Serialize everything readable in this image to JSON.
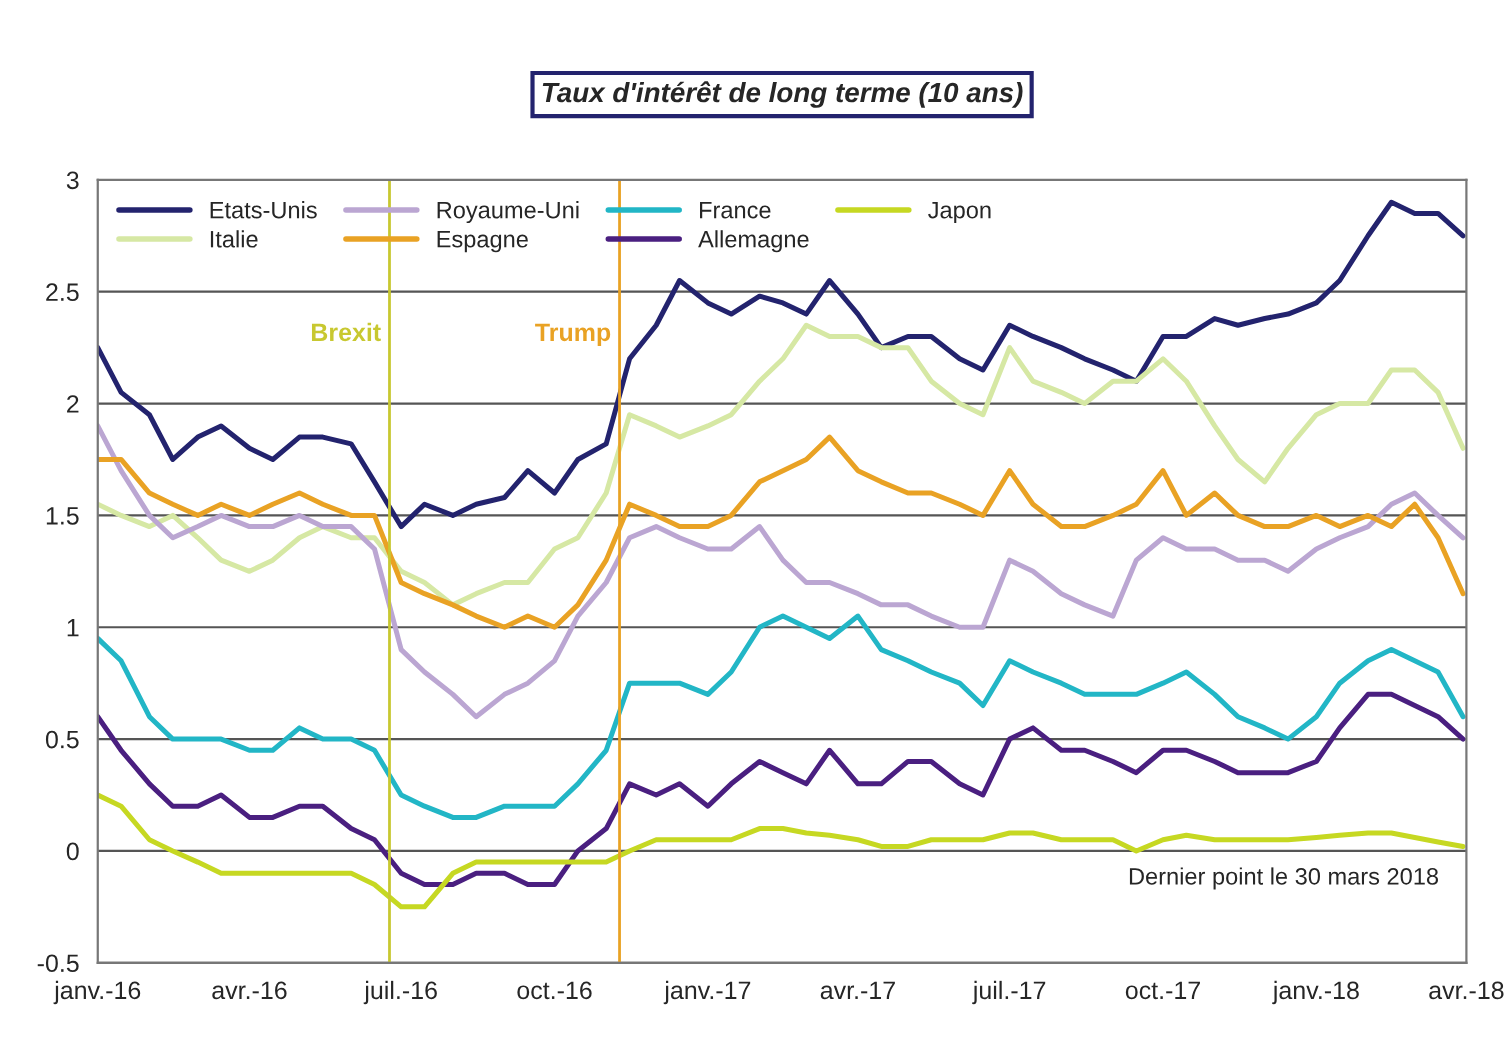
{
  "chart_data": {
    "type": "line",
    "title": "Taux d'intérêt de long terme (10 ans)",
    "x": [
      "2016-01-01",
      "2016-01-15",
      "2016-02-01",
      "2016-02-15",
      "2016-03-01",
      "2016-03-15",
      "2016-04-01",
      "2016-04-15",
      "2016-05-01",
      "2016-05-15",
      "2016-06-01",
      "2016-06-15",
      "2016-07-01",
      "2016-07-15",
      "2016-08-01",
      "2016-08-15",
      "2016-09-01",
      "2016-09-15",
      "2016-10-01",
      "2016-10-15",
      "2016-11-01",
      "2016-11-15",
      "2016-12-01",
      "2016-12-15",
      "2017-01-01",
      "2017-01-15",
      "2017-02-01",
      "2017-02-15",
      "2017-03-01",
      "2017-03-15",
      "2017-04-01",
      "2017-04-15",
      "2017-05-01",
      "2017-05-15",
      "2017-06-01",
      "2017-06-15",
      "2017-07-01",
      "2017-07-15",
      "2017-08-01",
      "2017-08-15",
      "2017-09-01",
      "2017-09-15",
      "2017-10-01",
      "2017-10-15",
      "2017-11-01",
      "2017-11-15",
      "2017-12-01",
      "2017-12-15",
      "2018-01-01",
      "2018-01-15",
      "2018-02-01",
      "2018-02-15",
      "2018-03-01",
      "2018-03-15",
      "2018-03-30"
    ],
    "series": [
      {
        "name": "Etats-Unis",
        "color": "#23236e",
        "values": [
          2.25,
          2.05,
          1.95,
          1.75,
          1.85,
          1.9,
          1.8,
          1.75,
          1.85,
          1.85,
          1.82,
          1.65,
          1.45,
          1.55,
          1.5,
          1.55,
          1.58,
          1.7,
          1.6,
          1.75,
          1.82,
          2.2,
          2.35,
          2.55,
          2.45,
          2.4,
          2.48,
          2.45,
          2.4,
          2.55,
          2.4,
          2.25,
          2.3,
          2.3,
          2.2,
          2.15,
          2.35,
          2.3,
          2.25,
          2.2,
          2.15,
          2.1,
          2.3,
          2.3,
          2.38,
          2.35,
          2.38,
          2.4,
          2.45,
          2.55,
          2.75,
          2.9,
          2.85,
          2.85,
          2.75
        ]
      },
      {
        "name": "Italie",
        "color": "#d6e8a4",
        "values": [
          1.55,
          1.5,
          1.45,
          1.5,
          1.4,
          1.3,
          1.25,
          1.3,
          1.4,
          1.45,
          1.4,
          1.4,
          1.25,
          1.2,
          1.1,
          1.15,
          1.2,
          1.2,
          1.35,
          1.4,
          1.6,
          1.95,
          1.9,
          1.85,
          1.9,
          1.95,
          2.1,
          2.2,
          2.35,
          2.3,
          2.3,
          2.25,
          2.25,
          2.1,
          2.0,
          1.95,
          2.25,
          2.1,
          2.05,
          2.0,
          2.1,
          2.1,
          2.2,
          2.1,
          1.9,
          1.75,
          1.65,
          1.8,
          1.95,
          2.0,
          2.0,
          2.15,
          2.15,
          2.05,
          1.8
        ]
      },
      {
        "name": "Royaume-Uni",
        "color": "#bba6d2",
        "values": [
          1.9,
          1.7,
          1.5,
          1.4,
          1.45,
          1.5,
          1.45,
          1.45,
          1.5,
          1.45,
          1.45,
          1.35,
          0.9,
          0.8,
          0.7,
          0.6,
          0.7,
          0.75,
          0.85,
          1.05,
          1.2,
          1.4,
          1.45,
          1.4,
          1.35,
          1.35,
          1.45,
          1.3,
          1.2,
          1.2,
          1.15,
          1.1,
          1.1,
          1.05,
          1.0,
          1.0,
          1.3,
          1.25,
          1.15,
          1.1,
          1.05,
          1.3,
          1.4,
          1.35,
          1.35,
          1.3,
          1.3,
          1.25,
          1.35,
          1.4,
          1.45,
          1.55,
          1.6,
          1.5,
          1.4
        ]
      },
      {
        "name": "Espagne",
        "color": "#e9a224",
        "values": [
          1.75,
          1.75,
          1.6,
          1.55,
          1.5,
          1.55,
          1.5,
          1.55,
          1.6,
          1.55,
          1.5,
          1.5,
          1.2,
          1.15,
          1.1,
          1.05,
          1.0,
          1.05,
          1.0,
          1.1,
          1.3,
          1.55,
          1.5,
          1.45,
          1.45,
          1.5,
          1.65,
          1.7,
          1.75,
          1.85,
          1.7,
          1.65,
          1.6,
          1.6,
          1.55,
          1.5,
          1.7,
          1.55,
          1.45,
          1.45,
          1.5,
          1.55,
          1.7,
          1.5,
          1.6,
          1.5,
          1.45,
          1.45,
          1.5,
          1.45,
          1.5,
          1.45,
          1.55,
          1.4,
          1.15
        ]
      },
      {
        "name": "France",
        "color": "#22b6c6",
        "values": [
          0.95,
          0.85,
          0.6,
          0.5,
          0.5,
          0.5,
          0.45,
          0.45,
          0.55,
          0.5,
          0.5,
          0.45,
          0.25,
          0.2,
          0.15,
          0.15,
          0.2,
          0.2,
          0.2,
          0.3,
          0.45,
          0.75,
          0.75,
          0.75,
          0.7,
          0.8,
          1.0,
          1.05,
          1.0,
          0.95,
          1.05,
          0.9,
          0.85,
          0.8,
          0.75,
          0.65,
          0.85,
          0.8,
          0.75,
          0.7,
          0.7,
          0.7,
          0.75,
          0.8,
          0.7,
          0.6,
          0.55,
          0.5,
          0.6,
          0.75,
          0.85,
          0.9,
          0.85,
          0.8,
          0.6
        ]
      },
      {
        "name": "Allemagne",
        "color": "#4a1f80",
        "values": [
          0.6,
          0.45,
          0.3,
          0.2,
          0.2,
          0.25,
          0.15,
          0.15,
          0.2,
          0.2,
          0.1,
          0.05,
          -0.1,
          -0.15,
          -0.15,
          -0.1,
          -0.1,
          -0.15,
          -0.15,
          0.0,
          0.1,
          0.3,
          0.25,
          0.3,
          0.2,
          0.3,
          0.4,
          0.35,
          0.3,
          0.45,
          0.3,
          0.3,
          0.4,
          0.4,
          0.3,
          0.25,
          0.5,
          0.55,
          0.45,
          0.45,
          0.4,
          0.35,
          0.45,
          0.45,
          0.4,
          0.35,
          0.35,
          0.35,
          0.4,
          0.55,
          0.7,
          0.7,
          0.65,
          0.6,
          0.5
        ]
      },
      {
        "name": "Japon",
        "color": "#c6d822",
        "values": [
          0.25,
          0.2,
          0.05,
          0.0,
          -0.05,
          -0.1,
          -0.1,
          -0.1,
          -0.1,
          -0.1,
          -0.1,
          -0.15,
          -0.25,
          -0.25,
          -0.1,
          -0.05,
          -0.05,
          -0.05,
          -0.05,
          -0.05,
          -0.05,
          0.0,
          0.05,
          0.05,
          0.05,
          0.05,
          0.1,
          0.1,
          0.08,
          0.07,
          0.05,
          0.02,
          0.02,
          0.05,
          0.05,
          0.05,
          0.08,
          0.08,
          0.05,
          0.05,
          0.05,
          0.0,
          0.05,
          0.07,
          0.05,
          0.05,
          0.05,
          0.05,
          0.06,
          0.07,
          0.08,
          0.08,
          0.06,
          0.04,
          0.02
        ]
      }
    ],
    "xlim": [
      "2016-01-01",
      "2018-04-01"
    ],
    "xticks": [
      {
        "value": "2016-01-01",
        "label": "janv.-16"
      },
      {
        "value": "2016-04-01",
        "label": "avr.-16"
      },
      {
        "value": "2016-07-01",
        "label": "juil.-16"
      },
      {
        "value": "2016-10-01",
        "label": "oct.-16"
      },
      {
        "value": "2017-01-01",
        "label": "janv.-17"
      },
      {
        "value": "2017-04-01",
        "label": "avr.-17"
      },
      {
        "value": "2017-07-01",
        "label": "juil.-17"
      },
      {
        "value": "2017-10-01",
        "label": "oct.-17"
      },
      {
        "value": "2018-01-01",
        "label": "janv.-18"
      },
      {
        "value": "2018-04-01",
        "label": "avr.-18"
      }
    ],
    "ylim": [
      -0.5,
      3
    ],
    "yticks": [
      -0.5,
      0,
      0.5,
      1,
      1.5,
      2,
      2.5,
      3
    ],
    "grid": "y",
    "legend": "top left",
    "line_style": "solid",
    "ref_lines": [
      {
        "axis": "x",
        "value": "2016-06-24",
        "label": "Brexit",
        "color": "#c8c830"
      },
      {
        "axis": "x",
        "value": "2016-11-09",
        "label": "Trump",
        "color": "#e9a224"
      }
    ],
    "annotations": [
      "Dernier point le 30 mars 2018"
    ]
  }
}
